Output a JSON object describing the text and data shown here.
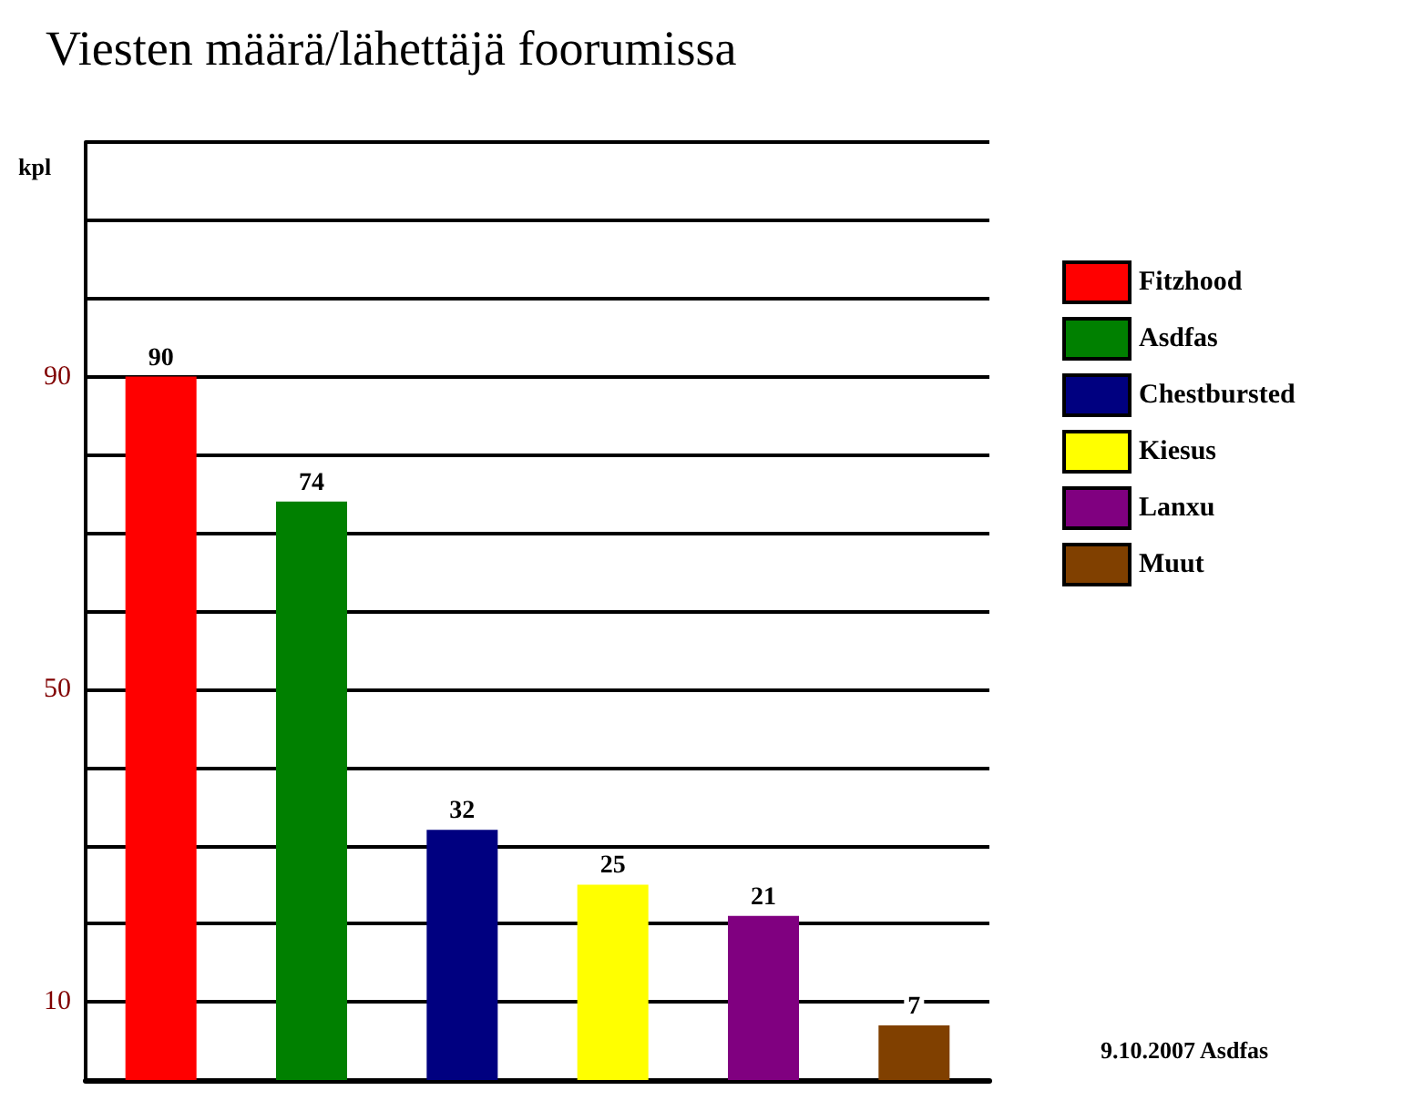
{
  "chart_data": {
    "type": "bar",
    "title": "Viesten määrä/lähettäjä foorumissa",
    "ylabel": "kpl",
    "annotations": [
      "9.10.2007 Asdfas"
    ],
    "categories": [
      null,
      null,
      null,
      null,
      null,
      null
    ],
    "series": [
      {
        "name": "Fitzhood",
        "color": "#ff0000",
        "values": [
          90,
          null,
          null,
          null,
          null,
          null
        ]
      },
      {
        "name": "Asdfas",
        "color": "#008000",
        "values": [
          null,
          74,
          null,
          null,
          null,
          null
        ]
      },
      {
        "name": "Chestbursted",
        "color": "#000080",
        "values": [
          null,
          null,
          32,
          null,
          null,
          null
        ]
      },
      {
        "name": "Kiesus",
        "color": "#ffff00",
        "values": [
          null,
          null,
          null,
          25,
          null,
          null
        ]
      },
      {
        "name": "Lanxu",
        "color": "#800080",
        "values": [
          null,
          null,
          null,
          null,
          21,
          null
        ]
      },
      {
        "name": "Muut",
        "color": "#804000",
        "values": [
          null,
          null,
          null,
          null,
          null,
          7
        ]
      }
    ],
    "ylim": [
      0,
      120
    ],
    "yticks": [
      {
        "value": 0,
        "label": null
      },
      10,
      {
        "value": 20,
        "label": null
      },
      {
        "value": 30,
        "label": null
      },
      {
        "value": 40,
        "label": null
      },
      50,
      {
        "value": 60,
        "label": null
      },
      {
        "value": 70,
        "label": null
      },
      {
        "value": 80,
        "label": null
      },
      90,
      {
        "value": 100,
        "label": null
      },
      {
        "value": 110,
        "label": null
      },
      {
        "value": 120,
        "label": null
      }
    ],
    "grid": true,
    "legend": "right",
    "data_labels": true
  }
}
